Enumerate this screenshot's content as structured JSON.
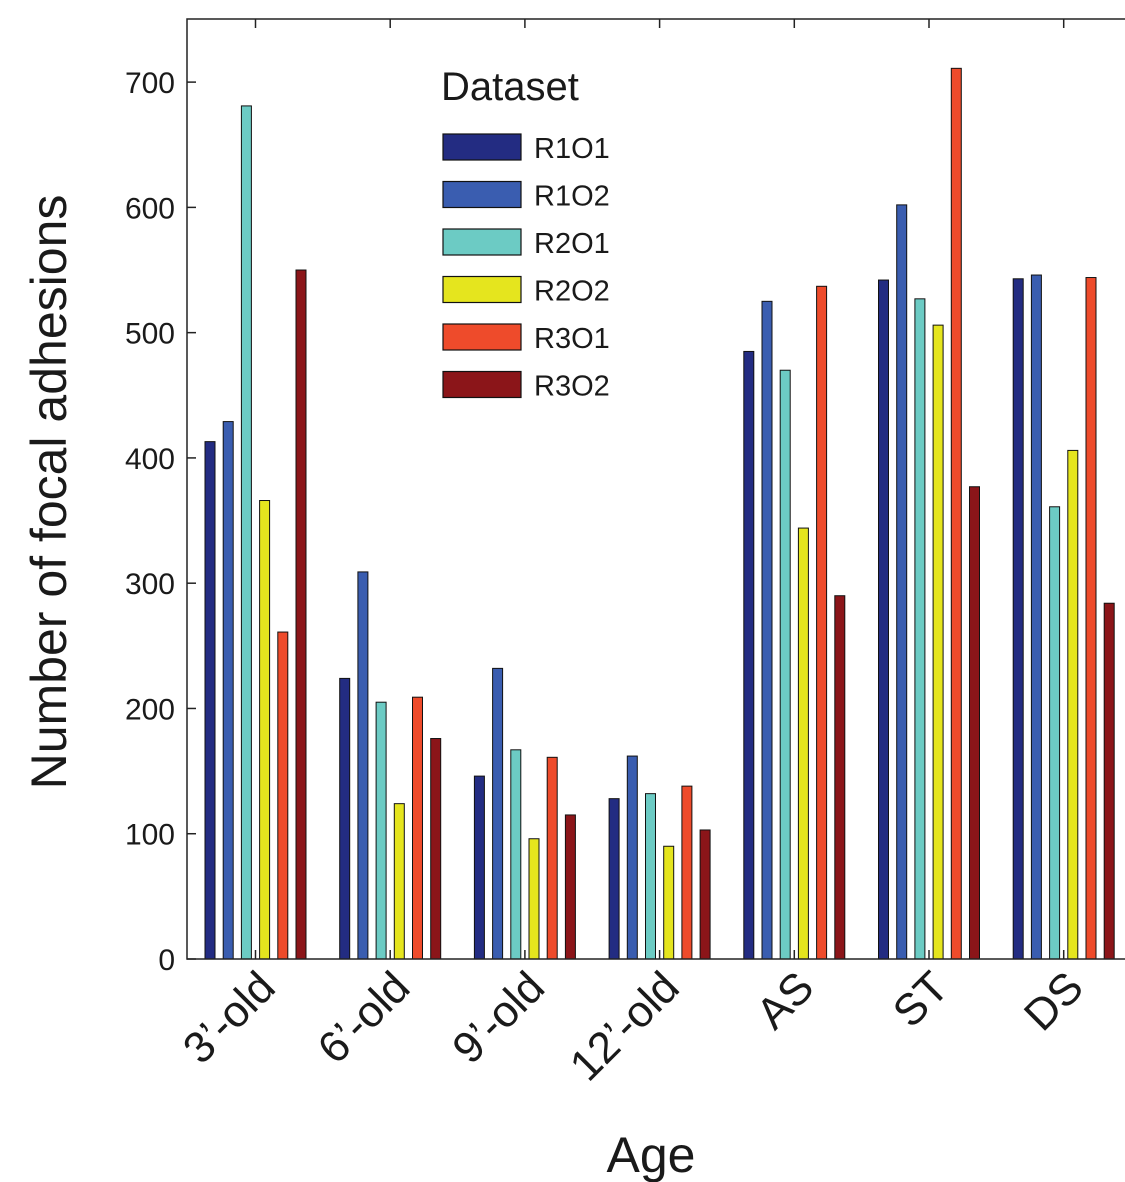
{
  "chart_data": {
    "type": "bar",
    "title": "",
    "xlabel": "Age",
    "ylabel": "Number of focal adhesions",
    "ylim": [
      0,
      750
    ],
    "yticks": [
      0,
      100,
      200,
      300,
      400,
      500,
      600,
      700
    ],
    "categories": [
      "3’-old",
      "6’-old",
      "9’-old",
      "12’-old",
      "AS",
      "ST",
      "DS"
    ],
    "legend": {
      "title": "Dataset",
      "placement": "top-center",
      "boxed": false
    },
    "grid": false,
    "series": [
      {
        "name": "R1O1",
        "color": "#232c82",
        "values": [
          413,
          224,
          146,
          128,
          485,
          542,
          543
        ]
      },
      {
        "name": "R1O2",
        "color": "#3a5db0",
        "values": [
          429,
          309,
          232,
          162,
          525,
          602,
          546
        ]
      },
      {
        "name": "R2O1",
        "color": "#6ccbc4",
        "values": [
          681,
          205,
          167,
          132,
          470,
          527,
          361
        ]
      },
      {
        "name": "R2O2",
        "color": "#e5e51e",
        "values": [
          366,
          124,
          96,
          90,
          344,
          506,
          406
        ]
      },
      {
        "name": "R3O1",
        "color": "#ee4b2b",
        "values": [
          261,
          209,
          161,
          138,
          537,
          711,
          544
        ]
      },
      {
        "name": "R3O2",
        "color": "#8b1519",
        "values": [
          550,
          176,
          115,
          103,
          290,
          377,
          284
        ]
      }
    ]
  }
}
